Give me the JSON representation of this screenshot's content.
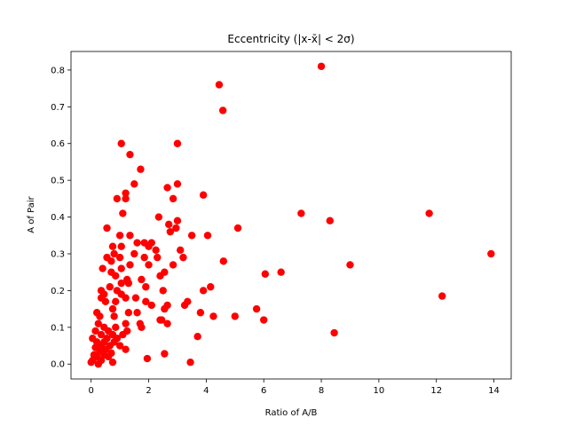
{
  "chart_data": {
    "type": "scatter",
    "title": "Eccentricity (|x-x̄| < 2σ)",
    "xlabel": "Ratio of A/B",
    "ylabel": "A of Pair",
    "xlim": [
      -0.7,
      14.6
    ],
    "ylim": [
      -0.0405,
      0.8505
    ],
    "xticks": [
      0,
      2,
      4,
      6,
      8,
      10,
      12,
      14
    ],
    "yticks": [
      0.0,
      0.1,
      0.2,
      0.3,
      0.4,
      0.5,
      0.6,
      0.7,
      0.8
    ],
    "xtick_labels": [
      "0",
      "2",
      "4",
      "6",
      "8",
      "10",
      "12",
      "14"
    ],
    "ytick_labels": [
      "0.0",
      "0.1",
      "0.2",
      "0.3",
      "0.4",
      "0.5",
      "0.6",
      "0.7",
      "0.8"
    ],
    "grid": false,
    "legend": "none",
    "marker_color": "#ff0000",
    "series": [
      {
        "points": [
          [
            8.0,
            0.81
          ],
          [
            4.45,
            0.76
          ],
          [
            4.58,
            0.69
          ],
          [
            1.05,
            0.6
          ],
          [
            3.0,
            0.6
          ],
          [
            1.35,
            0.57
          ],
          [
            1.72,
            0.53
          ],
          [
            1.5,
            0.49
          ],
          [
            3.0,
            0.49
          ],
          [
            2.65,
            0.48
          ],
          [
            1.2,
            0.465
          ],
          [
            3.9,
            0.46
          ],
          [
            0.9,
            0.45
          ],
          [
            1.2,
            0.45
          ],
          [
            2.85,
            0.45
          ],
          [
            1.1,
            0.41
          ],
          [
            7.3,
            0.41
          ],
          [
            11.75,
            0.41
          ],
          [
            2.35,
            0.4
          ],
          [
            3.0,
            0.39
          ],
          [
            8.3,
            0.39
          ],
          [
            2.7,
            0.38
          ],
          [
            2.95,
            0.37
          ],
          [
            0.55,
            0.37
          ],
          [
            5.1,
            0.37
          ],
          [
            2.75,
            0.36
          ],
          [
            1.35,
            0.35
          ],
          [
            3.5,
            0.35
          ],
          [
            4.05,
            0.35
          ],
          [
            1.0,
            0.35
          ],
          [
            1.6,
            0.33
          ],
          [
            1.85,
            0.33
          ],
          [
            2.1,
            0.33
          ],
          [
            2.0,
            0.32
          ],
          [
            0.75,
            0.32
          ],
          [
            1.05,
            0.32
          ],
          [
            2.25,
            0.31
          ],
          [
            3.1,
            0.31
          ],
          [
            0.8,
            0.3
          ],
          [
            1.5,
            0.3
          ],
          [
            13.9,
            0.3
          ],
          [
            0.55,
            0.29
          ],
          [
            1.0,
            0.29
          ],
          [
            1.85,
            0.29
          ],
          [
            2.3,
            0.29
          ],
          [
            3.2,
            0.29
          ],
          [
            4.6,
            0.28
          ],
          [
            0.4,
            0.26
          ],
          [
            0.7,
            0.28
          ],
          [
            1.35,
            0.27
          ],
          [
            2.0,
            0.27
          ],
          [
            2.85,
            0.27
          ],
          [
            9.0,
            0.27
          ],
          [
            0.7,
            0.25
          ],
          [
            1.05,
            0.26
          ],
          [
            2.55,
            0.25
          ],
          [
            6.6,
            0.25
          ],
          [
            6.05,
            0.245
          ],
          [
            2.4,
            0.24
          ],
          [
            0.85,
            0.24
          ],
          [
            1.05,
            0.22
          ],
          [
            1.25,
            0.23
          ],
          [
            1.75,
            0.23
          ],
          [
            0.35,
            0.2
          ],
          [
            1.3,
            0.22
          ],
          [
            4.15,
            0.21
          ],
          [
            1.9,
            0.21
          ],
          [
            0.65,
            0.21
          ],
          [
            0.9,
            0.2
          ],
          [
            2.5,
            0.2
          ],
          [
            3.9,
            0.2
          ],
          [
            0.45,
            0.19
          ],
          [
            1.05,
            0.19
          ],
          [
            12.2,
            0.185
          ],
          [
            0.35,
            0.18
          ],
          [
            1.2,
            0.18
          ],
          [
            1.55,
            0.18
          ],
          [
            1.9,
            0.17
          ],
          [
            3.35,
            0.17
          ],
          [
            0.5,
            0.17
          ],
          [
            0.85,
            0.17
          ],
          [
            2.1,
            0.16
          ],
          [
            2.65,
            0.16
          ],
          [
            3.25,
            0.16
          ],
          [
            2.55,
            0.15
          ],
          [
            5.75,
            0.15
          ],
          [
            0.75,
            0.15
          ],
          [
            0.2,
            0.14
          ],
          [
            1.3,
            0.14
          ],
          [
            1.6,
            0.14
          ],
          [
            3.8,
            0.14
          ],
          [
            4.25,
            0.13
          ],
          [
            5.0,
            0.13
          ],
          [
            0.3,
            0.13
          ],
          [
            0.8,
            0.13
          ],
          [
            2.4,
            0.12
          ],
          [
            6.0,
            0.12
          ],
          [
            0.25,
            0.11
          ],
          [
            1.2,
            0.11
          ],
          [
            1.7,
            0.11
          ],
          [
            2.45,
            0.12
          ],
          [
            2.65,
            0.11
          ],
          [
            0.45,
            0.1
          ],
          [
            0.85,
            0.1
          ],
          [
            1.75,
            0.1
          ],
          [
            0.15,
            0.09
          ],
          [
            0.6,
            0.09
          ],
          [
            1.25,
            0.09
          ],
          [
            8.45,
            0.085
          ],
          [
            0.35,
            0.08
          ],
          [
            0.75,
            0.08
          ],
          [
            1.1,
            0.08
          ],
          [
            3.7,
            0.075
          ],
          [
            0.05,
            0.07
          ],
          [
            0.55,
            0.07
          ],
          [
            0.9,
            0.07
          ],
          [
            0.2,
            0.06
          ],
          [
            0.45,
            0.06
          ],
          [
            0.8,
            0.06
          ],
          [
            0.35,
            0.05
          ],
          [
            0.65,
            0.05
          ],
          [
            1.0,
            0.05
          ],
          [
            0.15,
            0.045
          ],
          [
            0.5,
            0.04
          ],
          [
            1.2,
            0.04
          ],
          [
            0.3,
            0.035
          ],
          [
            0.7,
            0.03
          ],
          [
            0.1,
            0.025
          ],
          [
            0.45,
            0.025
          ],
          [
            2.55,
            0.028
          ],
          [
            0.2,
            0.02
          ],
          [
            0.6,
            0.02
          ],
          [
            1.95,
            0.015
          ],
          [
            0.05,
            0.01
          ],
          [
            0.35,
            0.01
          ],
          [
            0.75,
            0.005
          ],
          [
            3.45,
            0.005
          ],
          [
            0.0,
            0.005
          ],
          [
            0.25,
            0.0
          ]
        ]
      }
    ]
  }
}
